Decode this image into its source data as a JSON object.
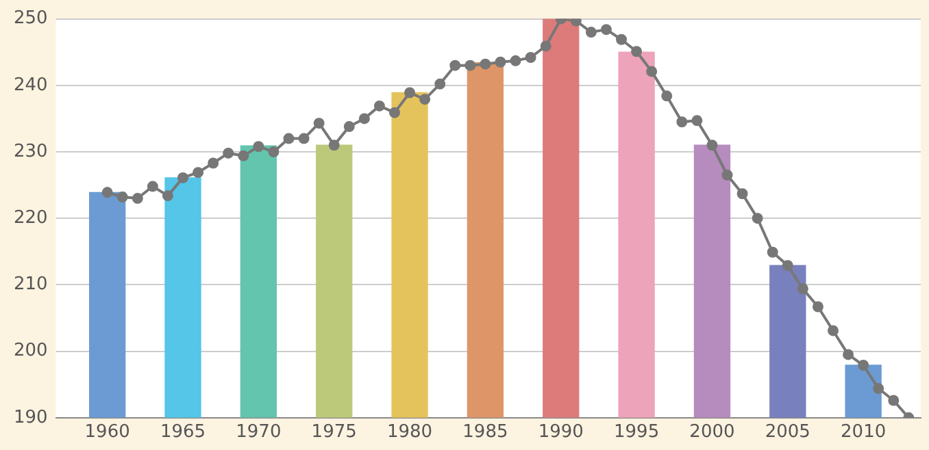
{
  "chart_data": {
    "type": "bar",
    "xlim": [
      1956.6,
      2013.8
    ],
    "xticks": [
      1960,
      1965,
      1970,
      1975,
      1980,
      1985,
      1990,
      1995,
      2000,
      2005,
      2010
    ],
    "ylim": [
      190,
      250
    ],
    "yticks": [
      190,
      200,
      210,
      220,
      230,
      240,
      250
    ],
    "grid": "y",
    "legend": false,
    "series": [
      {
        "x": [
          1960,
          1965,
          1970,
          1975,
          1980,
          1985,
          1990,
          1995,
          2000,
          2005,
          2010
        ],
        "values": [
          223.9,
          226.1,
          230.9,
          231.0,
          238.9,
          243.4,
          250,
          245.0,
          231.0,
          212.9,
          197.9
        ],
        "colors": [
          "#6b9bd2",
          "#55c5e8",
          "#63c5ad",
          "#bcc97a",
          "#e5c35c",
          "#de9669",
          "#dd7b7b",
          "#eda3b9",
          "#b68bbd",
          "#7880bd",
          "#6b9bd2"
        ]
      },
      {
        "type": "line",
        "color": "#777777",
        "marker": "circle",
        "line_style": "solid",
        "x": [
          1960,
          1961,
          1962,
          1963,
          1964,
          1965,
          1966,
          1967,
          1968,
          1969,
          1970,
          1971,
          1972,
          1973,
          1974,
          1975,
          1976,
          1977,
          1978,
          1979,
          1980,
          1981,
          1982,
          1983,
          1984,
          1985,
          1986,
          1987,
          1988,
          1989,
          1990,
          1991,
          1992,
          1993,
          1994,
          1995,
          1996,
          1997,
          1998,
          1999,
          2000,
          2001,
          2002,
          2003,
          2004,
          2005,
          2006,
          2007,
          2008,
          2009,
          2010,
          2011,
          2012,
          2013
        ],
        "values": [
          223.9,
          223.2,
          223.0,
          224.8,
          223.4,
          226.1,
          226.9,
          228.3,
          229.8,
          229.4,
          230.8,
          230.0,
          232.0,
          232.0,
          234.3,
          231.0,
          233.8,
          235.0,
          236.9,
          235.9,
          238.9,
          237.9,
          240.2,
          243.0,
          243.0,
          243.2,
          243.5,
          243.7,
          244.2,
          245.9,
          250,
          249.7,
          248.0,
          248.4,
          246.9,
          245.1,
          242.1,
          238.4,
          234.5,
          234.7,
          231.0,
          226.5,
          223.7,
          220.0,
          214.9,
          212.9,
          209.4,
          206.7,
          203.1,
          199.5,
          197.9,
          194.4,
          192.6,
          190.0
        ]
      }
    ]
  }
}
